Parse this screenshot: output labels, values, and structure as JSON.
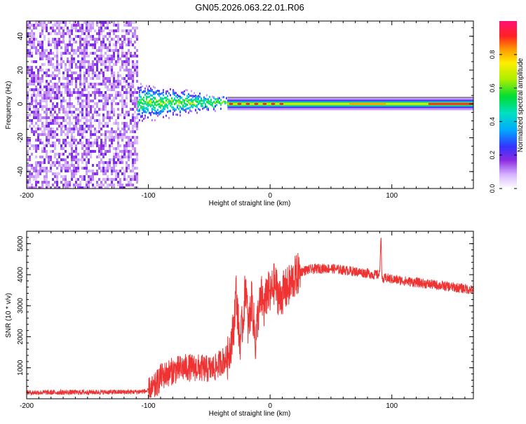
{
  "title": "GN05.2026.063.22.01.R06",
  "chart_data": [
    {
      "type": "heatmap",
      "title": "GN05.2026.063.22.01.R06",
      "xlabel": "Height of straight line (km)",
      "ylabel": "Frequency (Hz)",
      "xlim": [
        -200,
        167
      ],
      "ylim": [
        -50,
        49
      ],
      "x_ticks": [
        "-200",
        "-100",
        "0",
        "100"
      ],
      "y_ticks": [
        "-40",
        "-20",
        "0",
        "20",
        "40"
      ],
      "colorbar": {
        "label": "Normalized spectral amplitude",
        "range": [
          0,
          1
        ],
        "ticks": [
          "0.0",
          "0.2",
          "0.4",
          "0.6",
          "0.8"
        ]
      },
      "regions": [
        {
          "x_from": -200,
          "x_to": -109,
          "description": "broadband noise",
          "amplitude": 0.12
        },
        {
          "x_from": -109,
          "x_to": -35,
          "description": "noisy tone near 0 Hz",
          "amplitude": 0.5
        },
        {
          "x_from": -35,
          "x_to": 167,
          "description": "narrow tone at 0 Hz",
          "amplitude": 0.7
        }
      ],
      "grid": false
    },
    {
      "type": "line",
      "xlabel": "Height of straight line (km)",
      "ylabel": "SNR (10 * v/v)",
      "xlim": [
        -200,
        167
      ],
      "ylim": [
        0,
        5400
      ],
      "x_ticks": [
        "-200",
        "-100",
        "0",
        "100"
      ],
      "y_ticks": [
        "1000",
        "2000",
        "3000",
        "4000",
        "5000"
      ],
      "color": "#ef3333",
      "series": [
        {
          "x": [
            -200,
            -110,
            -100,
            -95,
            -90,
            -80,
            -70,
            -60,
            -50,
            -45,
            -40,
            -35,
            -30,
            -28,
            -25,
            -22,
            -20,
            -18,
            -15,
            -12,
            -10,
            -7,
            -5,
            -2,
            0,
            3,
            5,
            8,
            10,
            15,
            20,
            25,
            30,
            40,
            50,
            60,
            70,
            80,
            85,
            90,
            91,
            92,
            95,
            100,
            110,
            120,
            130,
            140,
            150,
            160,
            167
          ],
          "y": [
            200,
            220,
            250,
            350,
            700,
            900,
            1000,
            1000,
            950,
            1000,
            1200,
            1300,
            2200,
            3500,
            1800,
            2600,
            3800,
            2200,
            3200,
            1800,
            2700,
            3300,
            2900,
            3500,
            3300,
            3700,
            3600,
            3200,
            3400,
            3600,
            3900,
            4100,
            4150,
            4200,
            4200,
            4150,
            4100,
            4050,
            4000,
            4000,
            5300,
            3800,
            3900,
            3850,
            3800,
            3750,
            3700,
            3650,
            3600,
            3550,
            3500
          ]
        }
      ],
      "grid": false
    }
  ]
}
